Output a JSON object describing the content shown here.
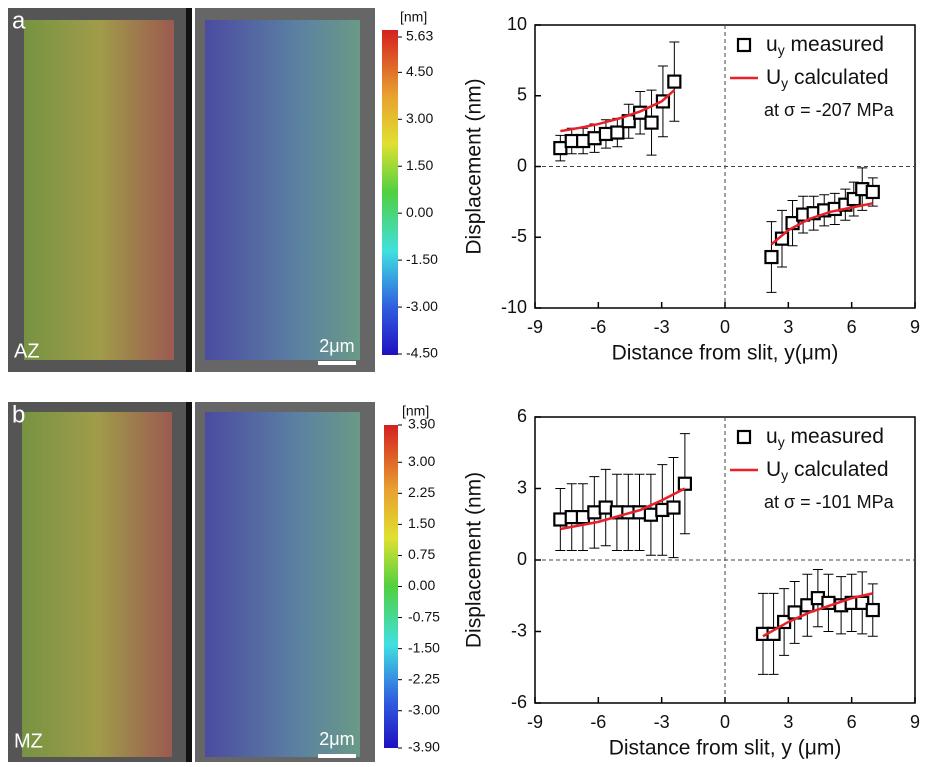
{
  "chart_data": [
    {
      "type": "scatter",
      "xlabel": "Distance from slit, y(μm)",
      "ylabel": "Displacement (nm)",
      "xlim": [
        -9,
        9
      ],
      "xticks": [
        -9,
        -6,
        -3,
        0,
        3,
        6,
        9
      ],
      "ylim": [
        -10,
        10
      ],
      "yticks": [
        -10,
        -5,
        0,
        5,
        10
      ],
      "zero_lines": true,
      "series": [
        {
          "name": "uy measured",
          "color": "#000000",
          "marker": "square",
          "x": [
            -7.8,
            -7.26,
            -6.72,
            -6.18,
            -5.64,
            -5.1,
            -4.56,
            -4.02,
            -3.48,
            -2.94,
            -2.4,
            2.2,
            2.7,
            3.2,
            3.7,
            4.2,
            4.7,
            5.2,
            5.7,
            6.1,
            6.5,
            7.0
          ],
          "values": [
            1.3,
            1.8,
            1.8,
            2.0,
            2.3,
            2.4,
            3.2,
            3.8,
            3.1,
            4.6,
            6.0,
            -6.4,
            -5.1,
            -4.0,
            -3.4,
            -3.3,
            -3.1,
            -3.0,
            -2.7,
            -2.3,
            -1.6,
            -1.8
          ],
          "errors": [
            0.9,
            0.9,
            0.9,
            1.0,
            1.0,
            1.0,
            1.2,
            1.5,
            2.3,
            2.5,
            2.8,
            2.5,
            2.0,
            1.6,
            1.3,
            1.2,
            1.1,
            1.1,
            1.1,
            1.2,
            1.5,
            1.0
          ]
        },
        {
          "name": "Uy calculated",
          "color": "#e8202a",
          "marker": "line",
          "x": [
            -7.8,
            -7.0,
            -6.0,
            -5.0,
            -4.0,
            -3.0,
            -2.4,
            null,
            2.2,
            3.0,
            4.0,
            5.0,
            6.0,
            7.0
          ],
          "values": [
            2.5,
            2.7,
            3.0,
            3.4,
            3.9,
            4.6,
            5.4,
            null,
            -5.5,
            -4.5,
            -3.7,
            -3.2,
            -2.9,
            -2.6
          ]
        }
      ],
      "annotation": "at σ = -207 MPa"
    },
    {
      "type": "scatter",
      "xlabel": "Distance from slit, y (μm)",
      "ylabel": "Displacement (nm)",
      "xlim": [
        -9,
        9
      ],
      "xticks": [
        -9,
        -6,
        -3,
        0,
        3,
        6,
        9
      ],
      "ylim": [
        -6,
        6
      ],
      "yticks": [
        -6,
        -3,
        0,
        3,
        6
      ],
      "zero_lines": true,
      "series": [
        {
          "name": "uy measured",
          "color": "#000000",
          "marker": "square",
          "x": [
            -7.8,
            -7.26,
            -6.73,
            -6.19,
            -5.65,
            -5.12,
            -4.58,
            -4.05,
            -3.51,
            -2.97,
            -2.44,
            -1.9,
            1.8,
            2.3,
            2.8,
            3.3,
            3.9,
            4.4,
            4.9,
            5.5,
            6.0,
            6.5,
            7.0
          ],
          "values": [
            1.7,
            1.8,
            1.8,
            2.0,
            2.2,
            2.0,
            2.0,
            2.0,
            1.9,
            2.1,
            2.2,
            3.2,
            -3.1,
            -3.1,
            -2.6,
            -2.2,
            -1.9,
            -1.6,
            -1.8,
            -1.9,
            -1.8,
            -1.8,
            -2.1
          ],
          "errors": [
            1.3,
            1.4,
            1.4,
            1.5,
            1.6,
            1.6,
            1.6,
            1.6,
            1.7,
            1.9,
            2.1,
            2.1,
            1.7,
            1.7,
            1.4,
            1.3,
            1.3,
            1.2,
            1.2,
            1.2,
            1.2,
            1.3,
            1.1
          ]
        },
        {
          "name": "Uy calculated",
          "color": "#e8202a",
          "marker": "line",
          "x": [
            -7.8,
            -6.0,
            -4.0,
            -3.0,
            -1.9,
            null,
            1.8,
            3.0,
            4.0,
            5.0,
            6.0,
            7.0
          ],
          "values": [
            1.3,
            1.6,
            2.1,
            2.5,
            3.0,
            null,
            -3.2,
            -2.6,
            -2.2,
            -1.9,
            -1.6,
            -1.4
          ]
        }
      ],
      "annotation": "at σ = -101 MPa"
    }
  ],
  "image_panels": [
    {
      "label": "a",
      "zone": "AZ",
      "scale_bar": "2μm",
      "colorbar": {
        "unit": "[nm]",
        "lim": [
          -4.5,
          5.63
        ],
        "ticks": [
          5.63,
          {
            "value": 4.5,
            "label": "4.50"
          },
          {
            "value": 3,
            "label": "3.00"
          },
          {
            "value": 1.5,
            "label": "1.50"
          },
          {
            "value": 0,
            "label": "0.00"
          },
          {
            "value": -1.5,
            "label": "-1.50"
          },
          {
            "value": -3,
            "label": "-3.00"
          },
          {
            "value": -4.5,
            "label": "-4.50"
          }
        ]
      }
    },
    {
      "label": "b",
      "zone": "MZ",
      "scale_bar": "2μm",
      "colorbar": {
        "unit": "[nm]",
        "lim": [
          -3.9,
          3.9
        ],
        "ticks": [
          {
            "value": 3.9,
            "label": "3.90"
          },
          {
            "value": 3,
            "label": "3.00"
          },
          2.25,
          {
            "value": 1.5,
            "label": "1.50"
          },
          0.75,
          {
            "value": 0,
            "label": "0.00"
          },
          -0.75,
          {
            "value": -1.5,
            "label": "-1.50"
          },
          -2.25,
          {
            "value": -3,
            "label": "-3.00"
          },
          {
            "value": -3.9,
            "label": "-3.90"
          }
        ]
      }
    }
  ]
}
